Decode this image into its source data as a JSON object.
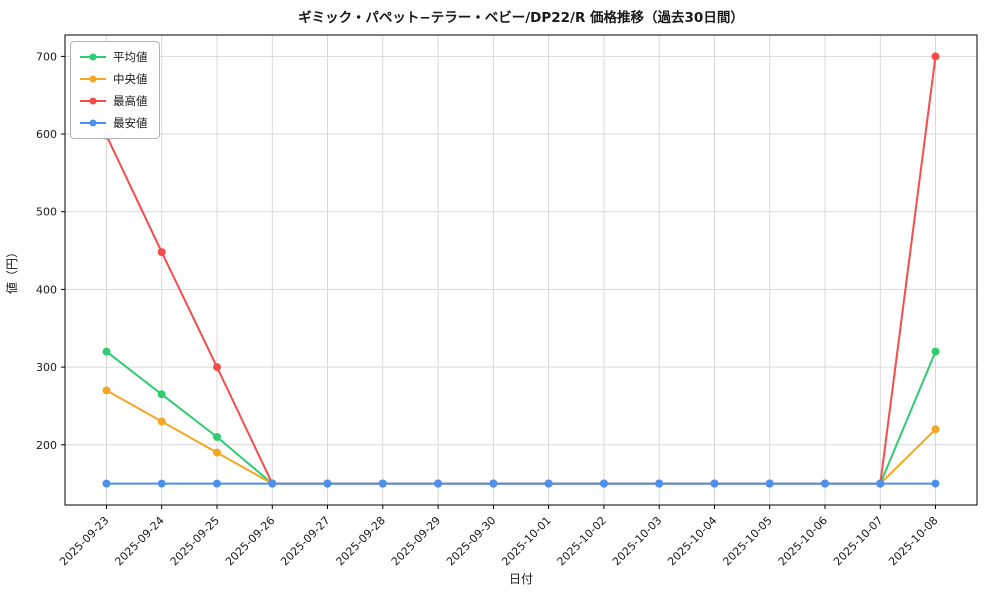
{
  "chart_data": {
    "type": "line",
    "title": "ギミック・パペット−テラー・ベビー/DP22/R 価格推移（過去30日間）",
    "xlabel": "日付",
    "ylabel": "値（円）",
    "x": [
      "2025-09-23",
      "2025-09-24",
      "2025-09-25",
      "2025-09-26",
      "2025-09-27",
      "2025-09-28",
      "2025-09-29",
      "2025-09-30",
      "2025-10-01",
      "2025-10-02",
      "2025-10-03",
      "2025-10-04",
      "2025-10-05",
      "2025-10-06",
      "2025-10-07",
      "2025-10-08"
    ],
    "yticks": [
      200,
      300,
      400,
      500,
      600,
      700
    ],
    "ylim": [
      122.5,
      727.5
    ],
    "grid": true,
    "legend_position": "upper left",
    "series": [
      {
        "name": "平均値",
        "color": "#2ecc71",
        "values": [
          320,
          265,
          210,
          150,
          150,
          150,
          150,
          150,
          150,
          150,
          150,
          150,
          150,
          150,
          150,
          320
        ]
      },
      {
        "name": "中央値",
        "color": "#f5a623",
        "values": [
          270,
          230,
          190,
          150,
          150,
          150,
          150,
          150,
          150,
          150,
          150,
          150,
          150,
          150,
          150,
          220
        ]
      },
      {
        "name": "最高値",
        "color": "#f64c4c",
        "values": [
          598,
          448,
          300,
          150,
          150,
          150,
          150,
          150,
          150,
          150,
          150,
          150,
          150,
          150,
          150,
          700
        ]
      },
      {
        "name": "最安値",
        "color": "#4c90f0",
        "values": [
          150,
          150,
          150,
          150,
          150,
          150,
          150,
          150,
          150,
          150,
          150,
          150,
          150,
          150,
          150,
          150
        ]
      }
    ]
  }
}
